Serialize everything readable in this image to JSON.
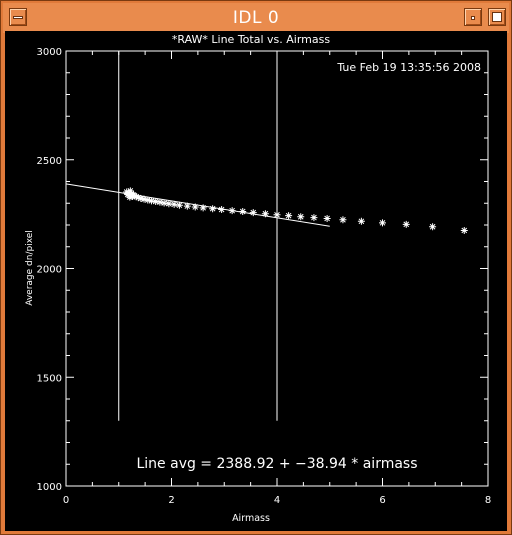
{
  "window": {
    "title": "IDL 0"
  },
  "chart_data": {
    "type": "scatter",
    "title": "*RAW* Line Total vs. Airmass",
    "timestamp": "Tue Feb 19 13:35:56 2008",
    "xlabel": "Airmass",
    "ylabel": "Average dn/pixel",
    "xlim": [
      0,
      8
    ],
    "ylim": [
      1000,
      3000
    ],
    "xticks": [
      "0",
      "2",
      "4",
      "6",
      "8"
    ],
    "yticks": [
      "1000",
      "1500",
      "2000",
      "2500",
      "3000"
    ],
    "fit": {
      "intercept": 2388.92,
      "slope": -38.94,
      "x_range": [
        0,
        5.0
      ]
    },
    "vertical_markers": [
      1.0,
      4.0
    ],
    "annotation": "Line avg = 2388.92 + −38.94 * airmass",
    "points": [
      [
        1.15,
        2352
      ],
      [
        1.17,
        2340
      ],
      [
        1.18,
        2346
      ],
      [
        1.2,
        2336
      ],
      [
        1.21,
        2328
      ],
      [
        1.22,
        2357
      ],
      [
        1.24,
        2344
      ],
      [
        1.26,
        2331
      ],
      [
        1.28,
        2338
      ],
      [
        1.3,
        2334
      ],
      [
        1.33,
        2330
      ],
      [
        1.37,
        2326
      ],
      [
        1.42,
        2322
      ],
      [
        1.48,
        2319
      ],
      [
        1.55,
        2315
      ],
      [
        1.62,
        2311
      ],
      [
        1.7,
        2308
      ],
      [
        1.78,
        2305
      ],
      [
        1.86,
        2301
      ],
      [
        1.95,
        2298
      ],
      [
        2.05,
        2295
      ],
      [
        2.15,
        2291
      ],
      [
        2.3,
        2287
      ],
      [
        2.45,
        2283
      ],
      [
        2.6,
        2279
      ],
      [
        2.78,
        2275
      ],
      [
        2.95,
        2271
      ],
      [
        3.15,
        2266
      ],
      [
        3.35,
        2262
      ],
      [
        3.55,
        2257
      ],
      [
        3.78,
        2252
      ],
      [
        4.0,
        2247
      ],
      [
        4.22,
        2243
      ],
      [
        4.45,
        2238
      ],
      [
        4.7,
        2234
      ],
      [
        4.95,
        2230
      ],
      [
        5.25,
        2224
      ],
      [
        5.6,
        2217
      ],
      [
        6.0,
        2210
      ],
      [
        6.45,
        2203
      ],
      [
        6.95,
        2192
      ],
      [
        7.55,
        2175
      ]
    ]
  }
}
